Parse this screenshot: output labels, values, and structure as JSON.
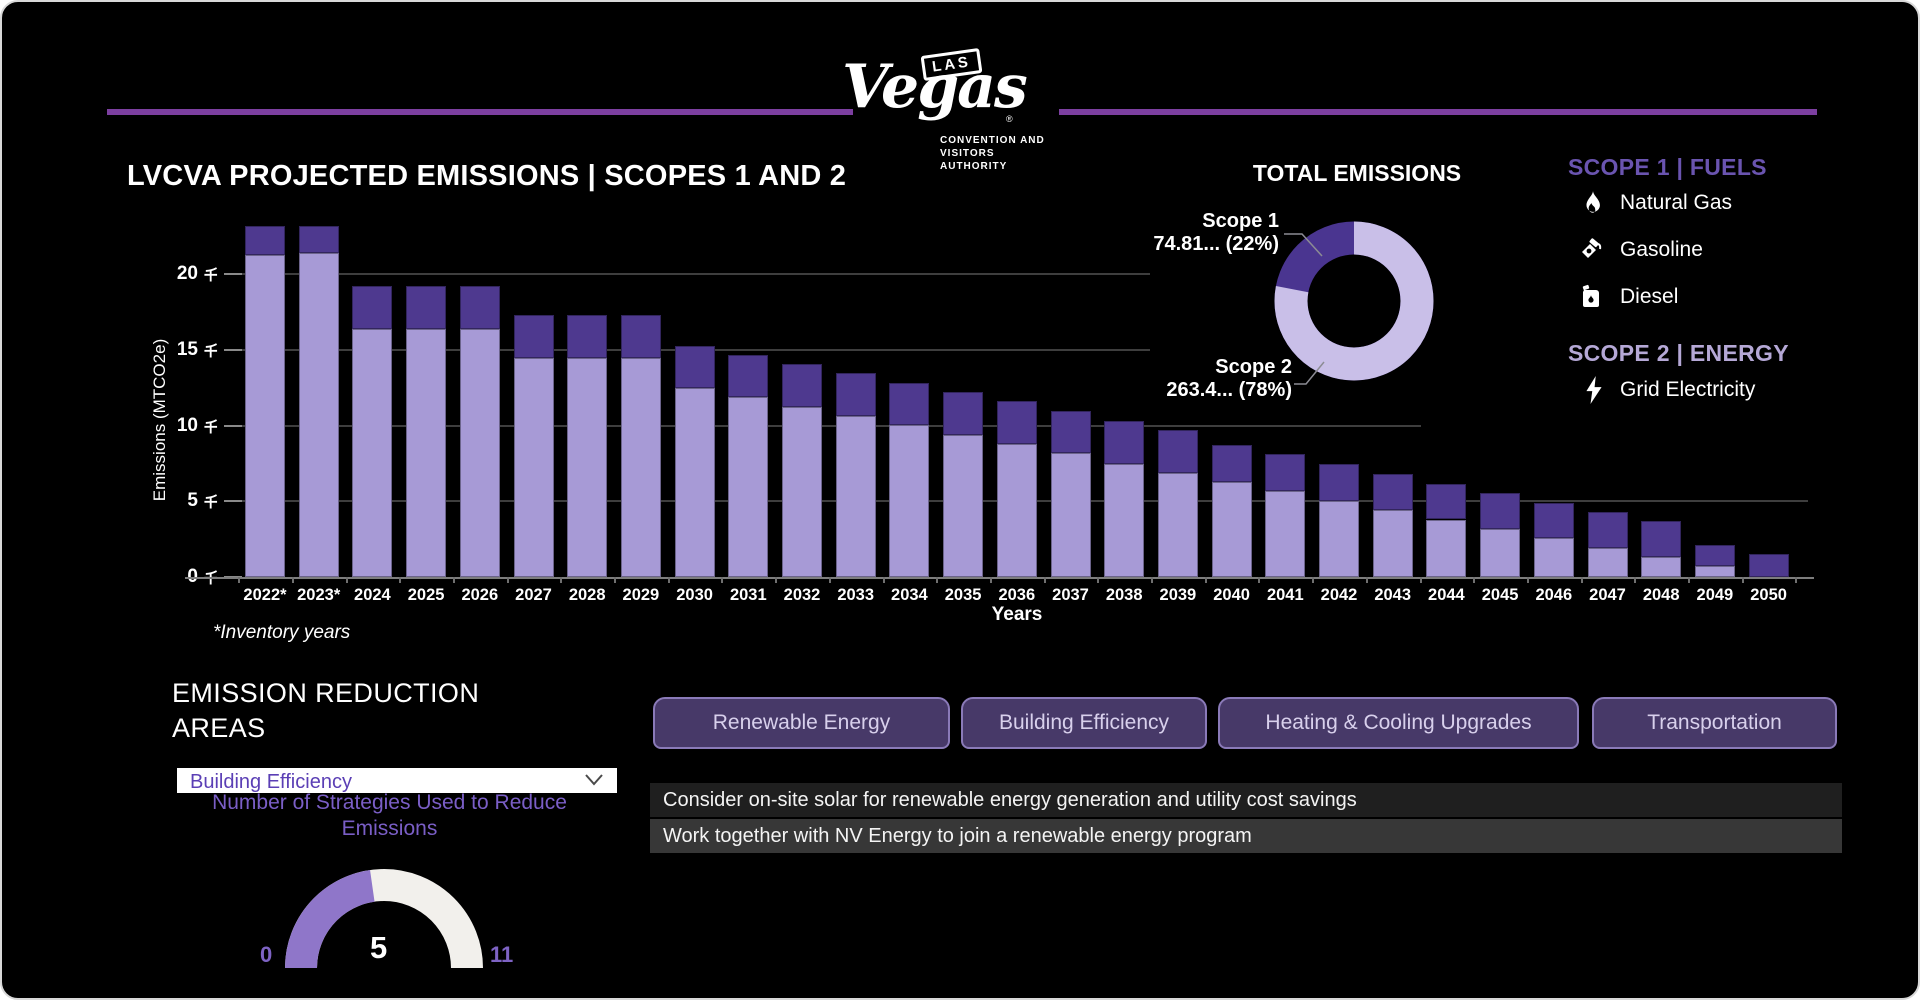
{
  "header": {
    "logo": {
      "las": "LAS",
      "vegas": "Vegas",
      "registered": "®",
      "org_line1": "CONVENTION AND",
      "org_line2": "VISITORS AUTHORITY"
    }
  },
  "chart": {
    "title": "LVCVA PROJECTED EMISSIONS | SCOPES 1 AND 2",
    "y_axis_label": "Emissions (MTCO2e)",
    "x_axis_label": "Years",
    "footnote": "*Inventory years",
    "unit_suffix": "千"
  },
  "chart_data": {
    "projected_emissions": {
      "type": "bar",
      "stacked": true,
      "title": "LVCVA PROJECTED EMISSIONS | SCOPES 1 AND 2",
      "xlabel": "Years",
      "ylabel": "Emissions (MTCO2e)",
      "unit": "thousand MTCO2e (千)",
      "ylim": [
        0,
        23.5
      ],
      "y_ticks": [
        0,
        5,
        10,
        15,
        20
      ],
      "grid": true,
      "categories": [
        "2022*",
        "2023*",
        "2024",
        "2025",
        "2026",
        "2027",
        "2028",
        "2029",
        "2030",
        "2031",
        "2032",
        "2033",
        "2034",
        "2035",
        "2036",
        "2037",
        "2038",
        "2039",
        "2040",
        "2041",
        "2042",
        "2043",
        "2044",
        "2045",
        "2046",
        "2047",
        "2048",
        "2049",
        "2050"
      ],
      "series": [
        {
          "name": "Scope 2",
          "color": "#a79ad6",
          "values": [
            21.3,
            21.4,
            16.4,
            16.4,
            16.4,
            14.45,
            14.45,
            14.45,
            12.5,
            11.9,
            11.25,
            10.65,
            10.05,
            9.4,
            8.8,
            8.2,
            7.5,
            6.9,
            6.3,
            5.7,
            5.05,
            4.4,
            3.8,
            3.2,
            2.55,
            1.9,
            1.3,
            0.7,
            0.0
          ]
        },
        {
          "name": "Scope 1",
          "color": "#4e398f",
          "values": [
            1.9,
            1.8,
            2.85,
            2.85,
            2.85,
            2.85,
            2.85,
            2.85,
            2.8,
            2.8,
            2.85,
            2.85,
            2.75,
            2.8,
            2.8,
            2.75,
            2.8,
            2.8,
            2.4,
            2.4,
            2.4,
            2.4,
            2.35,
            2.35,
            2.35,
            2.4,
            2.4,
            1.4,
            1.5
          ]
        }
      ]
    },
    "total_donut": {
      "type": "pie",
      "title": "TOTAL EMISSIONS",
      "slices": [
        {
          "name": "Scope 1",
          "value_label": "74.81... (22%)",
          "pct": 22,
          "color": "#4a3590"
        },
        {
          "name": "Scope 2",
          "value_label": "263.4... (78%)",
          "pct": 78,
          "color": "#c9bfe8"
        }
      ]
    },
    "strategies_gauge": {
      "type": "gauge",
      "min": 0,
      "max": 11,
      "value": 5,
      "fill_color": "#8f76c9",
      "track_color": "#f2f0ec"
    }
  },
  "legend": {
    "scope1_header": "SCOPE 1 | FUELS",
    "scope1_items": [
      {
        "icon": "flame-icon",
        "label": "Natural Gas"
      },
      {
        "icon": "fuel-pump-icon",
        "label": "Gasoline"
      },
      {
        "icon": "fuel-can-icon",
        "label": "Diesel"
      }
    ],
    "scope2_header": "SCOPE 2 | ENERGY",
    "scope2_items": [
      {
        "icon": "lightning-bolt-icon",
        "label": "Grid Electricity"
      }
    ]
  },
  "reduction_panel": {
    "heading_line1": "EMISSION REDUCTION",
    "heading_line2": "AREAS",
    "dropdown_value": "Building Efficiency",
    "gauge_caption_line1": "Number of Strategies Used to Reduce",
    "gauge_caption_line2": "Emissions"
  },
  "tabs": [
    {
      "label": "Renewable Energy"
    },
    {
      "label": "Building Efficiency"
    },
    {
      "label": "Heating & Cooling Upgrades"
    },
    {
      "label": "Transportation"
    }
  ],
  "suggestions": [
    {
      "text": "Consider on-site solar for renewable energy generation and utility cost savings"
    },
    {
      "text": "Work together with NV Energy to join a renewable energy program"
    }
  ],
  "colors": {
    "background": "#000000",
    "divider": "#7c3fa0",
    "bar_scope2": "#a79ad6",
    "bar_scope1": "#4e398f",
    "donut_scope2": "#c9bfe8",
    "donut_scope1": "#4a3590",
    "accent_text": "#7a5ec6"
  }
}
